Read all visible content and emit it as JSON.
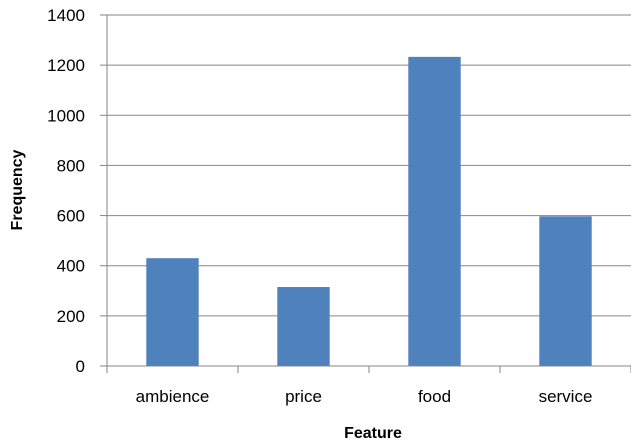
{
  "chart_data": {
    "type": "bar",
    "categories": [
      "ambience",
      "price",
      "food",
      "service"
    ],
    "values": [
      430,
      315,
      1233,
      597
    ],
    "xlabel": "Feature",
    "ylabel": "Frequency",
    "ylim": [
      0,
      1400
    ],
    "yticks": [
      0,
      200,
      400,
      600,
      800,
      1000,
      1200,
      1400
    ],
    "grid": true,
    "legend": "none",
    "bar_color": "#4F81BD",
    "grid_color": "#868686",
    "axis_color": "#868686",
    "text_color": "#000000"
  }
}
